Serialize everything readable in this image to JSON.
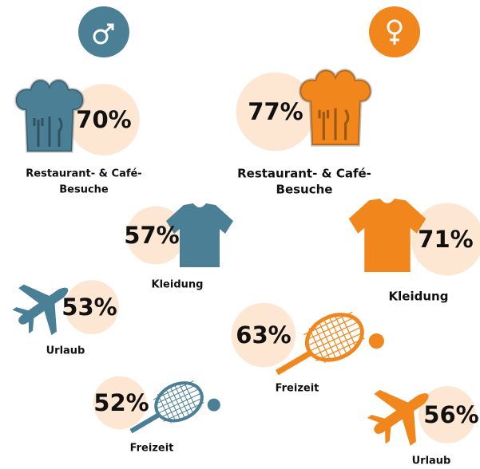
{
  "circle_color": "#fde7d2",
  "groups": [
    {
      "color": "#4a7f96",
      "items": [
        {
          "label": [
            "Restaurant- & Café-",
            "Besuche"
          ],
          "value": 70,
          "value_label": "70%"
        },
        {
          "label": [
            "Kleidung"
          ],
          "value": 57,
          "value_label": "57%"
        },
        {
          "label": [
            "Urlaub"
          ],
          "value": 53,
          "value_label": "53%"
        },
        {
          "label": [
            "Freizeit"
          ],
          "value": 52,
          "value_label": "52%"
        }
      ]
    },
    {
      "color": "#f0861c",
      "items": [
        {
          "label": [
            "Restaurant- & Café-",
            "Besuche"
          ],
          "value": 77,
          "value_label": "77%"
        },
        {
          "label": [
            "Kleidung"
          ],
          "value": 71,
          "value_label": "71%"
        },
        {
          "label": [
            "Freizeit"
          ],
          "value": 63,
          "value_label": "63%"
        },
        {
          "label": [
            "Urlaub"
          ],
          "value": 56,
          "value_label": "56%"
        }
      ]
    }
  ]
}
